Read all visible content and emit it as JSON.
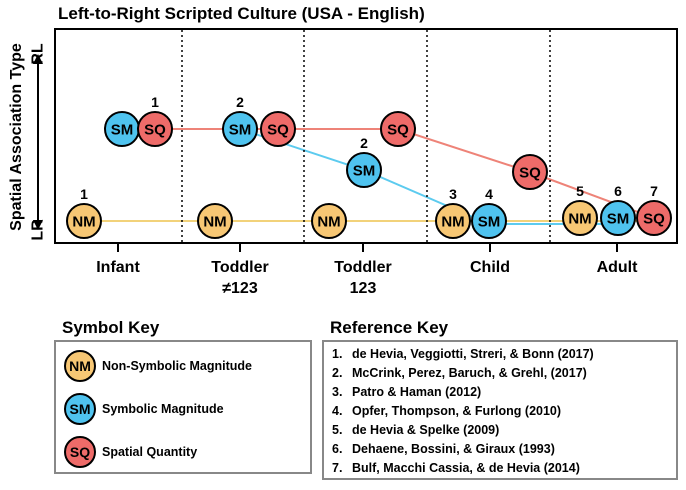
{
  "title": "Left-to-Right Scripted Culture (USA - English)",
  "y_axis": {
    "label": "Spatial Association Type",
    "top": "RL",
    "bottom": "LR"
  },
  "x_labels": [
    [
      "Infant"
    ],
    [
      "Toddler",
      "≠123"
    ],
    [
      "Toddler",
      "123"
    ],
    [
      "Child"
    ],
    [
      "Adult"
    ]
  ],
  "colors": {
    "NM": "#f7c774",
    "SM": "#4fc3ef",
    "SQ": "#ee6b69",
    "NM_line": "#f2d27a",
    "SM_line": "#5ccbef",
    "SQ_line": "#ee8378"
  },
  "symbol_key": {
    "heading": "Symbol Key",
    "items": [
      {
        "code": "NM",
        "label": "Non-Symbolic Magnitude"
      },
      {
        "code": "SM",
        "label": "Symbolic Magnitude"
      },
      {
        "code": "SQ",
        "label": "Spatial Quantity"
      }
    ]
  },
  "reference_key": {
    "heading": "Reference Key",
    "items": [
      {
        "num": "1.",
        "text": "de Hevia, Veggiotti, Streri, & Bonn (2017)"
      },
      {
        "num": "2.",
        "text": "McCrink, Perez, Baruch, & Grehl, (2017)"
      },
      {
        "num": "3.",
        "text": "Patro & Haman (2012)"
      },
      {
        "num": "4.",
        "text": "Opfer, Thompson, & Furlong (2010)"
      },
      {
        "num": "5.",
        "text": "de Hevia & Spelke (2009)"
      },
      {
        "num": "6.",
        "text": "Dehaene, Bossini, & Giraux (1993)"
      },
      {
        "num": "7.",
        "text": "Bulf, Macchi Cassia, & de Hevia (2014)"
      }
    ]
  },
  "nodes": [
    {
      "code": "NM",
      "ref": "1"
    },
    {
      "code": "SM",
      "ref": ""
    },
    {
      "code": "SQ",
      "ref": "1"
    },
    {
      "code": "NM",
      "ref": ""
    },
    {
      "code": "SM",
      "ref": "2"
    },
    {
      "code": "SQ",
      "ref": ""
    },
    {
      "code": "NM",
      "ref": ""
    },
    {
      "code": "SQ",
      "ref": ""
    },
    {
      "code": "SM",
      "ref": "2"
    },
    {
      "code": "NM",
      "ref": "3"
    },
    {
      "code": "SM",
      "ref": "4"
    },
    {
      "code": "SQ",
      "ref": ""
    },
    {
      "code": "NM",
      "ref": "5"
    },
    {
      "code": "SM",
      "ref": "6"
    },
    {
      "code": "SQ",
      "ref": "7"
    }
  ]
}
